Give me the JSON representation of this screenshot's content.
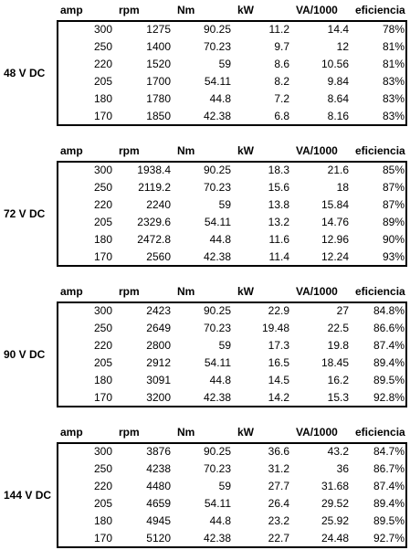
{
  "blocks": [
    {
      "label": "48 V DC",
      "header": [
        "amp",
        "rpm",
        "Nm",
        "kW",
        "VA/1000",
        "eficiencia"
      ],
      "rows": [
        [
          "300",
          "1275",
          "90.25",
          "11.2",
          "14.4",
          "78%"
        ],
        [
          "250",
          "1400",
          "70.23",
          "9.7",
          "12",
          "81%"
        ],
        [
          "220",
          "1520",
          "59",
          "8.6",
          "10.56",
          "81%"
        ],
        [
          "205",
          "1700",
          "54.11",
          "8.2",
          "9.84",
          "83%"
        ],
        [
          "180",
          "1780",
          "44.8",
          "7.2",
          "8.64",
          "83%"
        ],
        [
          "170",
          "1850",
          "42.38",
          "6.8",
          "8.16",
          "83%"
        ]
      ]
    },
    {
      "label": "72 V DC",
      "header": [
        "amp",
        "rpm",
        "Nm",
        "kW",
        "VA/1000",
        "eficiencia"
      ],
      "rows": [
        [
          "300",
          "1938.4",
          "90.25",
          "18.3",
          "21.6",
          "85%"
        ],
        [
          "250",
          "2119.2",
          "70.23",
          "15.6",
          "18",
          "87%"
        ],
        [
          "220",
          "2240",
          "59",
          "13.8",
          "15.84",
          "87%"
        ],
        [
          "205",
          "2329.6",
          "54.11",
          "13.2",
          "14.76",
          "89%"
        ],
        [
          "180",
          "2472.8",
          "44.8",
          "11.6",
          "12.96",
          "90%"
        ],
        [
          "170",
          "2560",
          "42.38",
          "11.4",
          "12.24",
          "93%"
        ]
      ]
    },
    {
      "label": "90 V DC",
      "header": [
        "amp",
        "rpm",
        "Nm",
        "kW",
        "VA/1000",
        "eficiencia"
      ],
      "rows": [
        [
          "300",
          "2423",
          "90.25",
          "22.9",
          "27",
          "84.8%"
        ],
        [
          "250",
          "2649",
          "70.23",
          "19.48",
          "22.5",
          "86.6%"
        ],
        [
          "220",
          "2800",
          "59",
          "17.3",
          "19.8",
          "87.4%"
        ],
        [
          "205",
          "2912",
          "54.11",
          "16.5",
          "18.45",
          "89.4%"
        ],
        [
          "180",
          "3091",
          "44.8",
          "14.5",
          "16.2",
          "89.5%"
        ],
        [
          "170",
          "3200",
          "42.38",
          "14.2",
          "15.3",
          "92.8%"
        ]
      ]
    },
    {
      "label": "144 V DC",
      "header": [
        "amp",
        "rpm",
        "Nm",
        "kW",
        "VA/1000",
        "eficiencia"
      ],
      "rows": [
        [
          "300",
          "3876",
          "90.25",
          "36.6",
          "43.2",
          "84.7%"
        ],
        [
          "250",
          "4238",
          "70.23",
          "31.2",
          "36",
          "86.7%"
        ],
        [
          "220",
          "4480",
          "59",
          "27.7",
          "31.68",
          "87.4%"
        ],
        [
          "205",
          "4659",
          "54.11",
          "26.4",
          "29.52",
          "89.4%"
        ],
        [
          "180",
          "4945",
          "44.8",
          "23.2",
          "25.92",
          "89.5%"
        ],
        [
          "170",
          "5120",
          "42.38",
          "22.7",
          "24.48",
          "92.7%"
        ]
      ]
    }
  ]
}
